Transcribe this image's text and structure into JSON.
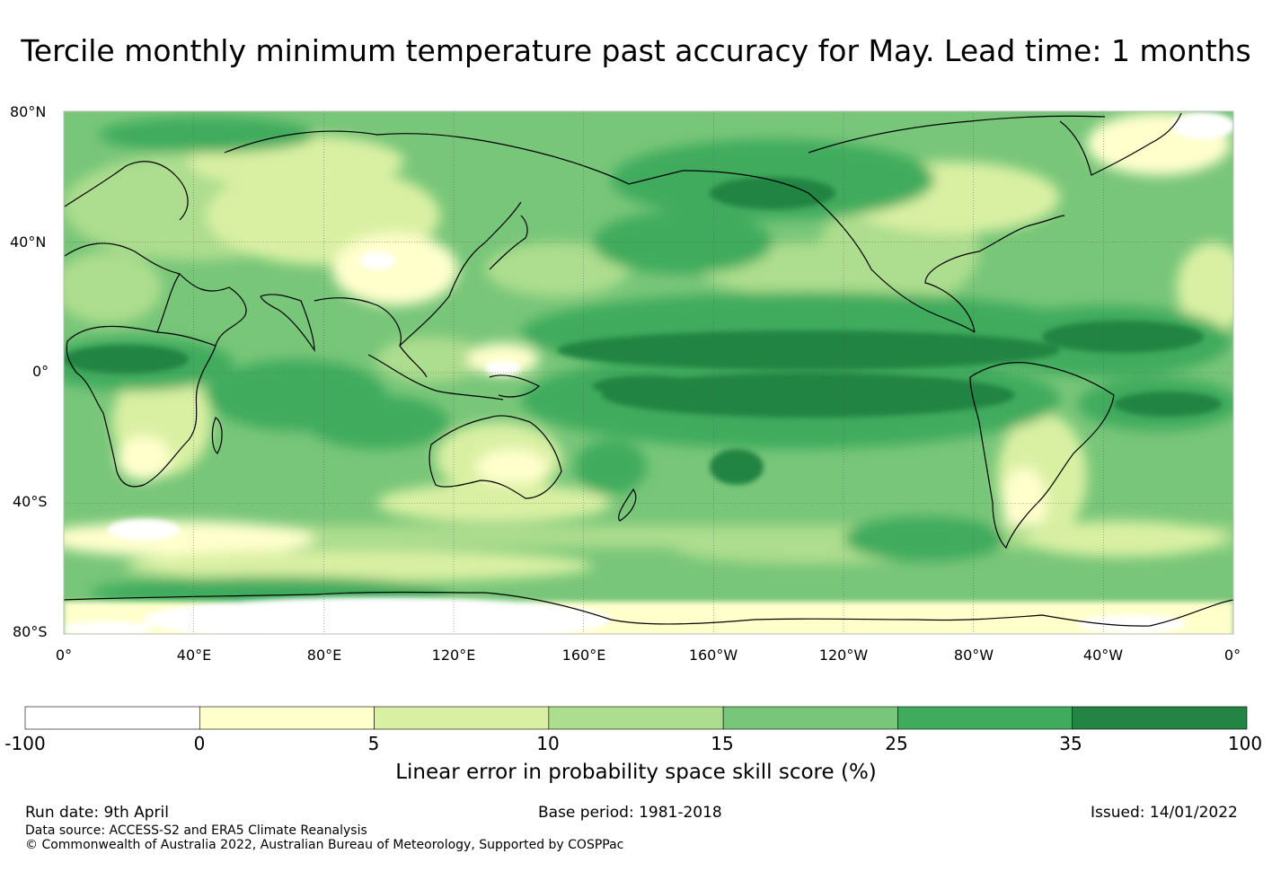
{
  "title": "Tercile monthly minimum temperature past accuracy for May. Lead time: 1 months",
  "map": {
    "lat_labels": [
      "80°N",
      "40°N",
      "0°",
      "40°S",
      "80°S"
    ],
    "lon_labels": [
      "0°",
      "40°E",
      "80°E",
      "120°E",
      "160°E",
      "160°W",
      "120°W",
      "80°W",
      "40°W",
      "0°"
    ],
    "extent": {
      "lon_from": "0°E",
      "lon_to": "360°E",
      "lat_from": "80°S",
      "lat_to": "80°N"
    }
  },
  "colorbar": {
    "ticks": [
      "-100",
      "0",
      "5",
      "10",
      "15",
      "25",
      "35",
      "100"
    ],
    "colors": [
      "#ffffff",
      "#ffffcc",
      "#d9f0a3",
      "#addd8e",
      "#78c679",
      "#41ab5d",
      "#238443"
    ],
    "label": "Linear error in probability space skill score (%)"
  },
  "footer": {
    "run_date": "Run date: 9th April",
    "base_period": "Base period: 1981-2018",
    "issued": "Issued: 14/01/2022",
    "data_source": "Data source: ACCESS-S2 and ERA5 Climate Reanalysis",
    "copyright": "© Commonwealth of Australia 2022, Australian Bureau of Meteorology, Supported by COSPPac"
  }
}
